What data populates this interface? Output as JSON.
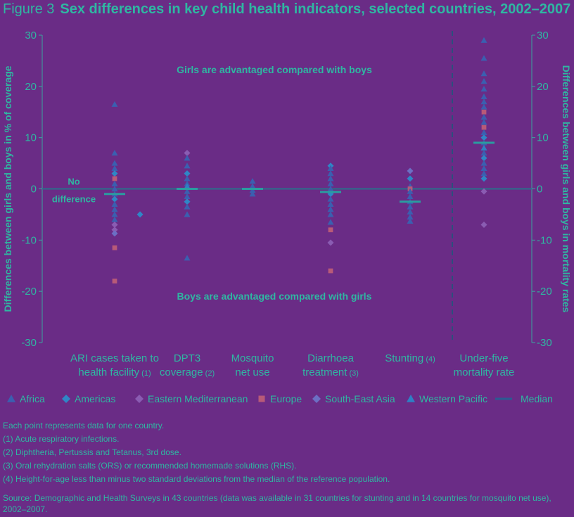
{
  "figure": {
    "number": "Figure 3",
    "title": "Sex differences in key child health indicators, selected countries, 2002–2007"
  },
  "colors": {
    "background": "#6a2c86",
    "text": "#2fb7a2",
    "axis": "#3aa6a0",
    "zero_line": "#2b6f8c",
    "median": "#2a9da0",
    "divider": "#2b4f7d"
  },
  "chart_data": {
    "type": "scatter",
    "ylabel_left": "Differences between girls and boys in % of coverage",
    "ylabel_right": "Differences between girls and boys in mortality rates",
    "ylim": [
      -30,
      30
    ],
    "y_ticks": [
      "30",
      "20",
      "10",
      "0",
      "-10",
      "-20",
      "-30"
    ],
    "grid": false,
    "legend_position": "bottom",
    "zero_line_label": [
      "No",
      "difference"
    ],
    "annotation_top": "Girls are advantaged compared with boys",
    "annotation_bottom": "Boys are advantaged compared with girls",
    "categories": [
      {
        "label": [
          "ARI cases taken to",
          "health facility"
        ],
        "note": "(1)"
      },
      {
        "label": [
          "DPT3",
          "coverage"
        ],
        "note": "(2)"
      },
      {
        "label": [
          "Mosquito",
          "net use"
        ],
        "note": ""
      },
      {
        "label": [
          "Diarrhoea",
          "treatment"
        ],
        "note": "(3)"
      },
      {
        "label": [
          "Stunting"
        ],
        "note": "(4)"
      },
      {
        "label": [
          "Under-five",
          "mortality rate"
        ],
        "note": ""
      }
    ],
    "medians": [
      -1,
      0,
      0,
      -0.6,
      -2.5,
      9
    ],
    "legend": [
      {
        "name": "Africa",
        "marker": "triangle",
        "color": "#3b5fb0"
      },
      {
        "name": "Americas",
        "marker": "diamond",
        "color": "#2f86c6"
      },
      {
        "name": "Eastern Mediterranean",
        "marker": "diamond",
        "color": "#8a5cb2"
      },
      {
        "name": "Europe",
        "marker": "square",
        "color": "#b85a78"
      },
      {
        "name": "South-East Asia",
        "marker": "diamond",
        "color": "#6c6fc4"
      },
      {
        "name": "Western Pacific",
        "marker": "triangle",
        "color": "#2f7fc4"
      },
      {
        "name": "Median",
        "marker": "line",
        "color": "#2a5c93"
      }
    ],
    "points": [
      {
        "cat": 0,
        "y": 16.5,
        "region": "Africa"
      },
      {
        "cat": 0,
        "y": 7,
        "region": "Africa"
      },
      {
        "cat": 0,
        "y": 5,
        "region": "Africa"
      },
      {
        "cat": 0,
        "y": 4,
        "region": "Africa"
      },
      {
        "cat": 0,
        "y": 3,
        "region": "Americas"
      },
      {
        "cat": 0,
        "y": 2,
        "region": "Europe"
      },
      {
        "cat": 0,
        "y": 1,
        "region": "Africa"
      },
      {
        "cat": 0,
        "y": 0,
        "region": "Africa"
      },
      {
        "cat": 0,
        "y": -1,
        "region": "Africa"
      },
      {
        "cat": 0,
        "y": -2,
        "region": "Americas"
      },
      {
        "cat": 0,
        "y": -3,
        "region": "Africa"
      },
      {
        "cat": 0,
        "y": -4,
        "region": "Africa"
      },
      {
        "cat": 0,
        "y": -5,
        "region": "Africa"
      },
      {
        "cat": 0,
        "y": -6,
        "region": "Africa"
      },
      {
        "cat": 0,
        "y": -7,
        "region": "Eastern Mediterranean"
      },
      {
        "cat": 0,
        "y": -8,
        "region": "Eastern Mediterranean"
      },
      {
        "cat": 0,
        "y": -8.7,
        "region": "South-East Asia"
      },
      {
        "cat": 0,
        "y": -11.5,
        "region": "Europe"
      },
      {
        "cat": 0,
        "y": -18,
        "region": "Europe"
      },
      {
        "cat": 0.35,
        "y": -5,
        "region": "Americas"
      },
      {
        "cat": 1,
        "y": 7,
        "region": "Eastern Mediterranean"
      },
      {
        "cat": 1,
        "y": 6,
        "region": "Africa"
      },
      {
        "cat": 1,
        "y": 4.5,
        "region": "Africa"
      },
      {
        "cat": 1,
        "y": 3,
        "region": "Americas"
      },
      {
        "cat": 1,
        "y": 2,
        "region": "Africa"
      },
      {
        "cat": 1,
        "y": 1,
        "region": "Africa"
      },
      {
        "cat": 1,
        "y": 0.5,
        "region": "Western Pacific"
      },
      {
        "cat": 1,
        "y": -0.5,
        "region": "Africa"
      },
      {
        "cat": 1,
        "y": -1.5,
        "region": "Africa"
      },
      {
        "cat": 1,
        "y": -2.5,
        "region": "Americas"
      },
      {
        "cat": 1,
        "y": -3.5,
        "region": "Africa"
      },
      {
        "cat": 1,
        "y": -5,
        "region": "Africa"
      },
      {
        "cat": 1,
        "y": -13.5,
        "region": "Africa"
      },
      {
        "cat": 2,
        "y": 1.5,
        "region": "Africa"
      },
      {
        "cat": 2,
        "y": 0.5,
        "region": "Africa"
      },
      {
        "cat": 2,
        "y": -0.3,
        "region": "Africa"
      },
      {
        "cat": 2,
        "y": -1,
        "region": "Africa"
      },
      {
        "cat": 3,
        "y": 4.5,
        "region": "Americas"
      },
      {
        "cat": 3,
        "y": 4,
        "region": "Africa"
      },
      {
        "cat": 3,
        "y": 3,
        "region": "Africa"
      },
      {
        "cat": 3,
        "y": 2,
        "region": "Africa"
      },
      {
        "cat": 3,
        "y": 1,
        "region": "Africa"
      },
      {
        "cat": 3,
        "y": 0,
        "region": "Africa"
      },
      {
        "cat": 3,
        "y": -1,
        "region": "Americas"
      },
      {
        "cat": 3,
        "y": -2,
        "region": "Africa"
      },
      {
        "cat": 3,
        "y": -3,
        "region": "Africa"
      },
      {
        "cat": 3,
        "y": -4,
        "region": "Africa"
      },
      {
        "cat": 3,
        "y": -5,
        "region": "Africa"
      },
      {
        "cat": 3,
        "y": -6.5,
        "region": "Africa"
      },
      {
        "cat": 3,
        "y": -8,
        "region": "Europe"
      },
      {
        "cat": 3,
        "y": -10.5,
        "region": "Eastern Mediterranean"
      },
      {
        "cat": 3,
        "y": -16,
        "region": "Europe"
      },
      {
        "cat": 4,
        "y": 3.5,
        "region": "South-East Asia"
      },
      {
        "cat": 4,
        "y": 2,
        "region": "Americas"
      },
      {
        "cat": 4,
        "y": 0.5,
        "region": "Africa"
      },
      {
        "cat": 4,
        "y": 0,
        "region": "Europe"
      },
      {
        "cat": 4,
        "y": -0.5,
        "region": "Africa"
      },
      {
        "cat": 4,
        "y": -1.5,
        "region": "Africa"
      },
      {
        "cat": 4,
        "y": -2.5,
        "region": "Africa"
      },
      {
        "cat": 4,
        "y": -3.5,
        "region": "Africa"
      },
      {
        "cat": 4,
        "y": -4.5,
        "region": "Africa"
      },
      {
        "cat": 4,
        "y": -5.5,
        "region": "Africa"
      },
      {
        "cat": 4,
        "y": -6.3,
        "region": "Africa"
      },
      {
        "cat": 5,
        "y": 29,
        "region": "Africa"
      },
      {
        "cat": 5,
        "y": 25.5,
        "region": "Africa"
      },
      {
        "cat": 5,
        "y": 22.5,
        "region": "Africa"
      },
      {
        "cat": 5,
        "y": 21,
        "region": "Africa"
      },
      {
        "cat": 5,
        "y": 19.5,
        "region": "Africa"
      },
      {
        "cat": 5,
        "y": 18,
        "region": "Africa"
      },
      {
        "cat": 5,
        "y": 17,
        "region": "Africa"
      },
      {
        "cat": 5,
        "y": 16,
        "region": "Africa"
      },
      {
        "cat": 5,
        "y": 15,
        "region": "Europe"
      },
      {
        "cat": 5,
        "y": 14,
        "region": "Africa"
      },
      {
        "cat": 5,
        "y": 13,
        "region": "Africa"
      },
      {
        "cat": 5,
        "y": 12,
        "region": "Europe"
      },
      {
        "cat": 5,
        "y": 11,
        "region": "Africa"
      },
      {
        "cat": 5,
        "y": 10,
        "region": "Americas"
      },
      {
        "cat": 5,
        "y": 9,
        "region": "Africa"
      },
      {
        "cat": 5,
        "y": 8,
        "region": "Western Pacific"
      },
      {
        "cat": 5,
        "y": 7,
        "region": "Africa"
      },
      {
        "cat": 5,
        "y": 6,
        "region": "Americas"
      },
      {
        "cat": 5,
        "y": 5,
        "region": "Africa"
      },
      {
        "cat": 5,
        "y": 4,
        "region": "Africa"
      },
      {
        "cat": 5,
        "y": 3,
        "region": "Africa"
      },
      {
        "cat": 5,
        "y": 2,
        "region": "Americas"
      },
      {
        "cat": 5,
        "y": -0.5,
        "region": "Eastern Mediterranean"
      },
      {
        "cat": 5,
        "y": -7,
        "region": "Eastern Mediterranean"
      }
    ]
  },
  "notes": [
    "Each point represents data for one country.",
    "(1) Acute respiratory infections.",
    "(2) Diphtheria, Pertussis and Tetanus, 3rd dose.",
    "(3) Oral rehydration salts (ORS) or recommended homemade solutions (RHS).",
    "(4) Height-for-age less than minus two standard deviations from the median of the reference population."
  ],
  "source": "Source: Demographic and Health Surveys in 43 countries (data was available in 31 countries for stunting and in 14 countries for mosquito net use), 2002–2007."
}
